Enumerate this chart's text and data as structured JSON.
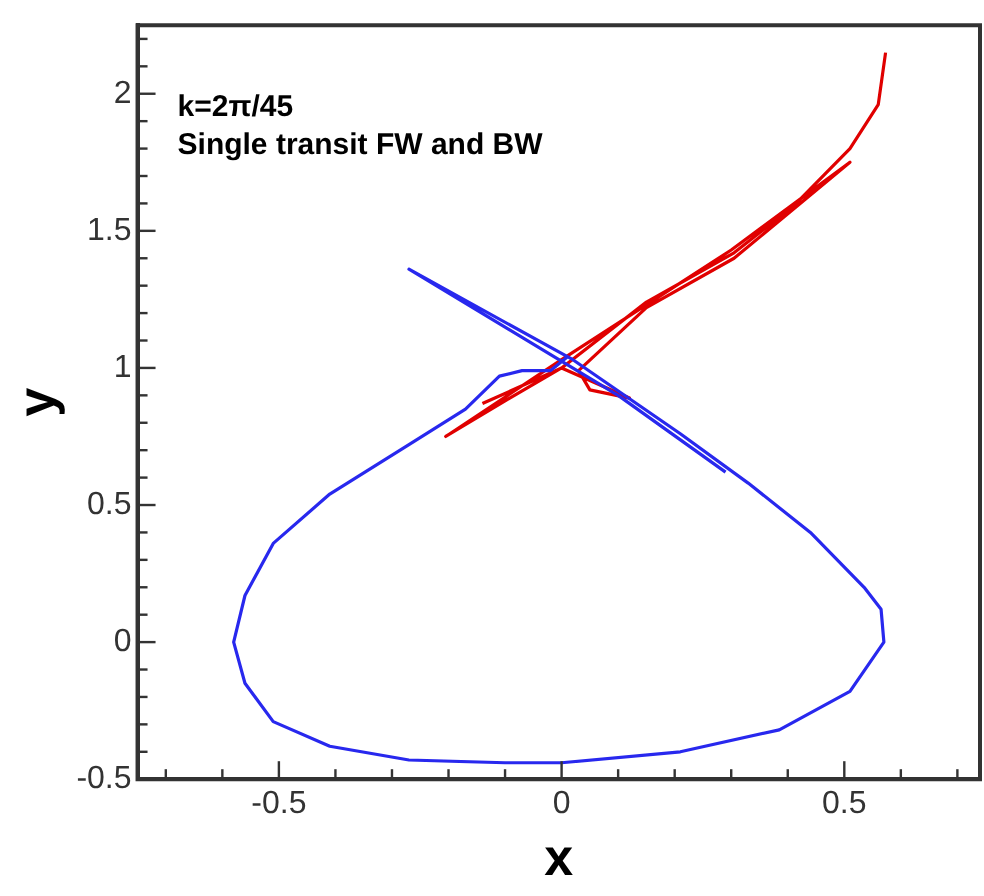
{
  "chart_data": {
    "type": "line",
    "xlabel": "x",
    "ylabel": "y",
    "annotations": [
      "k=2π/45",
      "Single transit FW and BW"
    ],
    "xlim": [
      -0.75,
      0.74
    ],
    "xticks": [
      {
        "value": -0.7,
        "label": null
      },
      {
        "value": -0.6,
        "label": null
      },
      -0.5,
      {
        "value": -0.4,
        "label": null
      },
      {
        "value": -0.3,
        "label": null
      },
      {
        "value": -0.2,
        "label": null
      },
      {
        "value": -0.1,
        "label": null
      },
      0,
      {
        "value": 0.1,
        "label": null
      },
      {
        "value": 0.2,
        "label": null
      },
      {
        "value": 0.3,
        "label": null
      },
      {
        "value": 0.4,
        "label": null
      },
      0.5,
      {
        "value": 0.6,
        "label": null
      },
      {
        "value": 0.7,
        "label": null
      }
    ],
    "ylim": [
      -0.5,
      2.25
    ],
    "yticks": [
      -0.5,
      {
        "value": -0.4,
        "label": null
      },
      {
        "value": -0.3,
        "label": null
      },
      {
        "value": -0.2,
        "label": null
      },
      {
        "value": -0.1,
        "label": null
      },
      0,
      {
        "value": 0.1,
        "label": null
      },
      {
        "value": 0.2,
        "label": null
      },
      {
        "value": 0.3,
        "label": null
      },
      {
        "value": 0.4,
        "label": null
      },
      0.5,
      {
        "value": 0.6,
        "label": null
      },
      {
        "value": 0.7,
        "label": null
      },
      {
        "value": 0.8,
        "label": null
      },
      {
        "value": 0.9,
        "label": null
      },
      1,
      {
        "value": 1.1,
        "label": null
      },
      {
        "value": 1.2,
        "label": null
      },
      {
        "value": 1.3,
        "label": null
      },
      {
        "value": 1.4,
        "label": null
      },
      1.5,
      {
        "value": 1.6,
        "label": null
      },
      {
        "value": 1.7,
        "label": null
      },
      {
        "value": 1.8,
        "label": null
      },
      {
        "value": 1.9,
        "label": null
      },
      2,
      {
        "value": 2.1,
        "label": null
      },
      {
        "value": 2.2,
        "label": null
      }
    ],
    "grid": false,
    "legend": false,
    "marker": "none",
    "line_style": "solid",
    "series": [
      {
        "color": "#e00000",
        "x": [
          -0.14,
          0.0,
          0.12,
          0.05,
          0.03,
          0.15,
          0.305,
          0.51,
          0.3,
          0.0,
          -0.205,
          -0.1,
          0.0,
          0.15,
          0.305,
          0.41,
          0.51,
          0.56,
          0.573
        ],
        "values": [
          0.87,
          1.0,
          0.89,
          0.92,
          0.99,
          1.22,
          1.4,
          1.75,
          1.43,
          1.03,
          0.75,
          0.88,
          1.0,
          1.24,
          1.42,
          1.59,
          1.8,
          1.96,
          2.15
        ]
      },
      {
        "color": "#2828ee",
        "x": [
          0.29,
          0.1,
          -0.27,
          0.02,
          0.21,
          0.33,
          0.44,
          0.535,
          0.565,
          0.57,
          0.51,
          0.385,
          0.21,
          0.0,
          -0.1,
          -0.27,
          -0.41,
          -0.51,
          -0.56,
          -0.58,
          -0.56,
          -0.51,
          -0.41,
          -0.27,
          -0.17,
          -0.11,
          -0.07,
          -0.02,
          0.01
        ],
        "values": [
          0.62,
          0.9,
          1.36,
          1.03,
          0.76,
          0.58,
          0.4,
          0.2,
          0.12,
          0.0,
          -0.18,
          -0.32,
          -0.4,
          -0.44,
          -0.44,
          -0.43,
          -0.38,
          -0.29,
          -0.15,
          0.0,
          0.17,
          0.36,
          0.54,
          0.72,
          0.85,
          0.97,
          0.99,
          0.99,
          1.04
        ]
      }
    ]
  }
}
